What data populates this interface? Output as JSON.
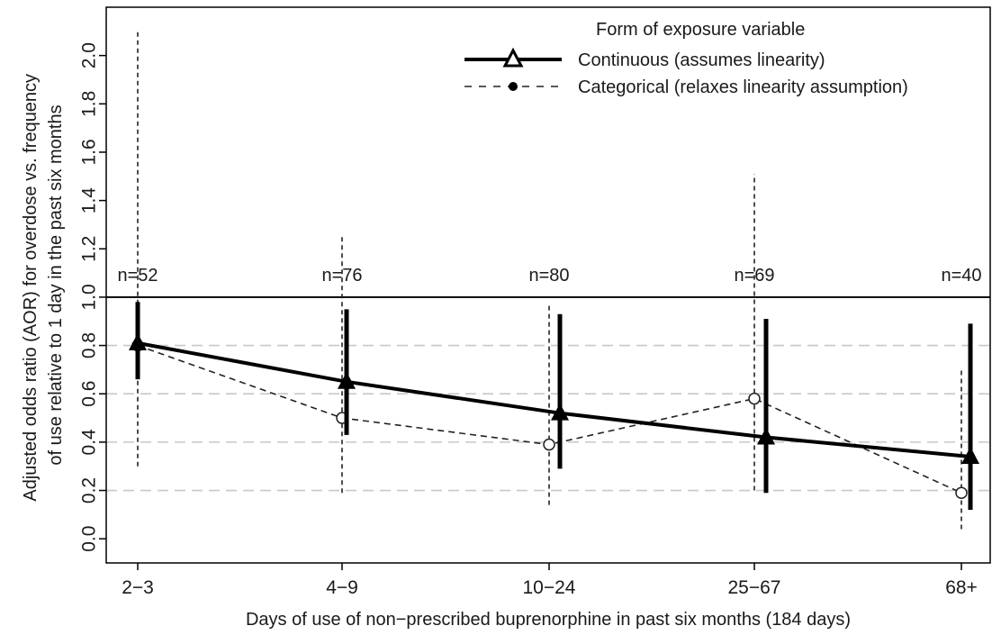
{
  "chart_data": {
    "type": "line",
    "xlabel": "Days of use of non−prescribed buprenorphine in past six months (184 days)",
    "ylabel_lines": [
      "Adjusted odds ratio (AOR) for overdose vs. frequency",
      "of use relative to 1 day in the past six months"
    ],
    "categories": [
      "2−3",
      "4−9",
      "10−24",
      "25−67",
      "68+"
    ],
    "sample_sizes": [
      "n=52",
      "n=76",
      "n=80",
      "n=69",
      "n=40"
    ],
    "y_ticks": [
      "0.0",
      "0.2",
      "0.4",
      "0.6",
      "0.8",
      "1.0",
      "1.2",
      "1.4",
      "1.6",
      "1.8",
      "2.0"
    ],
    "ylim": [
      -0.1,
      2.2
    ],
    "reference_line": 1.0,
    "dashed_gridlines": [
      0.2,
      0.4,
      0.6,
      0.8
    ],
    "legend": {
      "title": "Form of exposure variable",
      "position": "top-right"
    },
    "series": [
      {
        "name": "Continuous (assumes linearity)",
        "line_style": "solid",
        "marker": "filled-triangle",
        "values": [
          0.81,
          0.65,
          0.52,
          0.42,
          0.34
        ],
        "ci_lower": [
          0.66,
          0.43,
          0.29,
          0.19,
          0.12
        ],
        "ci_upper": [
          0.98,
          0.95,
          0.93,
          0.91,
          0.89
        ]
      },
      {
        "name": "Categorical (relaxes linearity assumption)",
        "line_style": "dashed",
        "marker": "open-circle",
        "values": [
          0.8,
          0.5,
          0.39,
          0.58,
          0.19
        ],
        "ci_lower": [
          0.3,
          0.19,
          0.14,
          0.2,
          0.04
        ],
        "ci_upper": [
          2.1,
          1.26,
          0.97,
          1.51,
          0.7
        ]
      }
    ]
  }
}
